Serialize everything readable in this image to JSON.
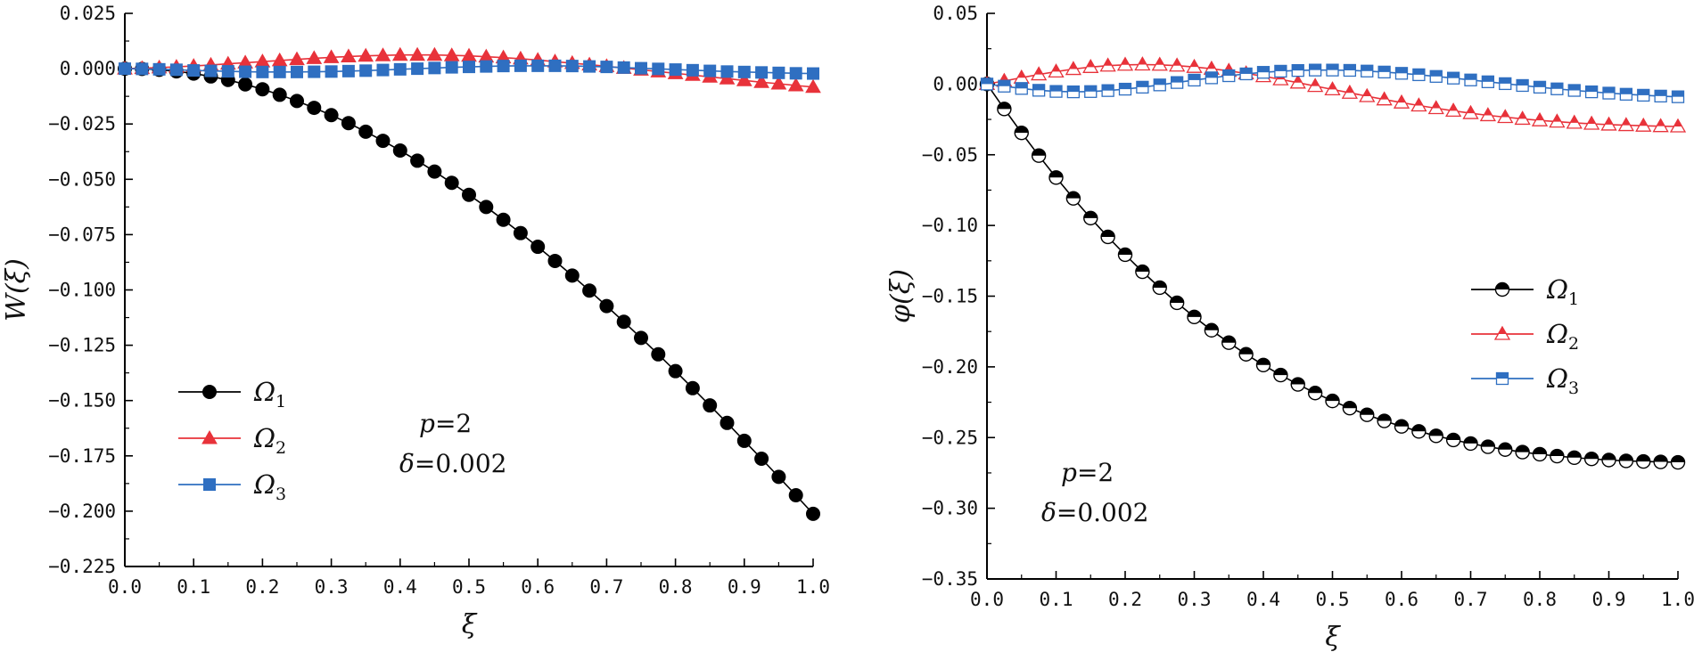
{
  "colors": {
    "black": "#000000",
    "red": "#e8323a",
    "blue": "#2f6fc1"
  },
  "chart_data": [
    {
      "type": "line",
      "ylabel": "W(ξ)",
      "xlabel": "ξ",
      "xlim": [
        0,
        1
      ],
      "ylim": [
        -0.225,
        0.025
      ],
      "xticks": [
        0.0,
        0.1,
        0.2,
        0.3,
        0.4,
        0.5,
        0.6,
        0.7,
        0.8,
        0.9,
        1.0
      ],
      "xtick_labels": [
        "0.0",
        "0.1",
        "0.2",
        "0.3",
        "0.4",
        "0.5",
        "0.6",
        "0.7",
        "0.8",
        "0.9",
        "1.0"
      ],
      "yticks": [
        0.025,
        0,
        -0.025,
        -0.05,
        -0.075,
        -0.1,
        -0.125,
        -0.15,
        -0.175,
        -0.2,
        -0.225
      ],
      "ytick_labels": [
        "0.025",
        "0.000",
        "−0.025",
        "−0.050",
        "−0.075",
        "−0.100",
        "−0.125",
        "−0.150",
        "−0.175",
        "−0.200",
        "−0.225"
      ],
      "legend_position": "lower-left",
      "annotation": {
        "p_label": "p",
        "p_value": "=2",
        "delta_label": "δ",
        "delta_value": "=0.002"
      },
      "x": [
        0,
        0.025,
        0.05,
        0.075,
        0.1,
        0.125,
        0.15,
        0.175,
        0.2,
        0.225,
        0.25,
        0.275,
        0.3,
        0.325,
        0.35,
        0.375,
        0.4,
        0.425,
        0.45,
        0.475,
        0.5,
        0.525,
        0.55,
        0.575,
        0.6,
        0.625,
        0.65,
        0.675,
        0.7,
        0.725,
        0.75,
        0.775,
        0.8,
        0.825,
        0.85,
        0.875,
        0.9,
        0.925,
        0.95,
        0.975,
        1.0
      ],
      "series": [
        {
          "name": "Ω",
          "sub": "1",
          "color": "black",
          "marker": "circle-filled",
          "values": [
            0,
            -0.0001,
            -0.0005,
            -0.0012,
            -0.0022,
            -0.0035,
            -0.0051,
            -0.0071,
            -0.0093,
            -0.0118,
            -0.0146,
            -0.0177,
            -0.021,
            -0.0246,
            -0.0285,
            -0.0326,
            -0.037,
            -0.0416,
            -0.0465,
            -0.0516,
            -0.057,
            -0.0625,
            -0.0683,
            -0.0743,
            -0.0805,
            -0.0869,
            -0.0935,
            -0.1003,
            -0.1073,
            -0.1144,
            -0.1217,
            -0.1291,
            -0.1367,
            -0.1444,
            -0.1522,
            -0.1601,
            -0.1682,
            -0.1763,
            -0.1845,
            -0.1928,
            -0.2012
          ]
        },
        {
          "name": "Ω",
          "sub": "2",
          "color": "red",
          "marker": "triangle-filled",
          "values": [
            0,
            0.0002,
            0.0005,
            0.0008,
            0.0012,
            0.0017,
            0.0022,
            0.0027,
            0.0032,
            0.0037,
            0.0042,
            0.0047,
            0.0051,
            0.0055,
            0.0058,
            0.006,
            0.0062,
            0.0062,
            0.0062,
            0.006,
            0.0058,
            0.0054,
            0.005,
            0.0045,
            0.0039,
            0.0032,
            0.0025,
            0.0018,
            0.0011,
            0.0003,
            -0.0005,
            -0.0013,
            -0.0021,
            -0.0029,
            -0.0037,
            -0.0045,
            -0.0053,
            -0.0061,
            -0.0068,
            -0.0076,
            -0.0083
          ]
        },
        {
          "name": "Ω",
          "sub": "3",
          "color": "blue",
          "marker": "square-filled",
          "values": [
            0,
            -0.0001,
            -0.0003,
            -0.0005,
            -0.0008,
            -0.001,
            -0.0012,
            -0.0014,
            -0.0015,
            -0.0015,
            -0.0015,
            -0.0014,
            -0.0013,
            -0.0011,
            -0.0009,
            -0.0006,
            -0.0003,
            0,
            0.0003,
            0.0006,
            0.0008,
            0.001,
            0.0012,
            0.0013,
            0.0013,
            0.0013,
            0.0012,
            0.001,
            0.0008,
            0.0005,
            0.0002,
            -0.0001,
            -0.0004,
            -0.0007,
            -0.001,
            -0.0013,
            -0.0015,
            -0.0017,
            -0.0019,
            -0.0021,
            -0.0022
          ]
        }
      ]
    },
    {
      "type": "line",
      "ylabel": "φ(ξ)",
      "xlabel": "ξ",
      "xlim": [
        0,
        1
      ],
      "ylim": [
        -0.35,
        0.05
      ],
      "xticks": [
        0.0,
        0.1,
        0.2,
        0.3,
        0.4,
        0.5,
        0.6,
        0.7,
        0.8,
        0.9,
        1.0
      ],
      "xtick_labels": [
        "0.0",
        "0.1",
        "0.2",
        "0.3",
        "0.4",
        "0.5",
        "0.6",
        "0.7",
        "0.8",
        "0.9",
        "1.0"
      ],
      "yticks": [
        0.05,
        0,
        -0.05,
        -0.1,
        -0.15,
        -0.2,
        -0.25,
        -0.3,
        -0.35
      ],
      "ytick_labels": [
        "0.05",
        "0.00",
        "−0.05",
        "−0.10",
        "−0.15",
        "−0.20",
        "−0.25",
        "−0.30",
        "−0.35"
      ],
      "legend_position": "middle-right",
      "annotation": {
        "p_label": "p",
        "p_value": "=2",
        "delta_label": "δ",
        "delta_value": "=0.002"
      },
      "x": [
        0,
        0.025,
        0.05,
        0.075,
        0.1,
        0.125,
        0.15,
        0.175,
        0.2,
        0.225,
        0.25,
        0.275,
        0.3,
        0.325,
        0.35,
        0.375,
        0.4,
        0.425,
        0.45,
        0.475,
        0.5,
        0.525,
        0.55,
        0.575,
        0.6,
        0.625,
        0.65,
        0.675,
        0.7,
        0.725,
        0.75,
        0.775,
        0.8,
        0.825,
        0.85,
        0.875,
        0.9,
        0.925,
        0.95,
        0.975,
        1.0
      ],
      "series": [
        {
          "name": "Ω",
          "sub": "1",
          "color": "black",
          "marker": "circle-half",
          "values": [
            0,
            -0.0176,
            -0.0345,
            -0.0506,
            -0.0661,
            -0.0808,
            -0.0948,
            -0.1081,
            -0.1207,
            -0.1327,
            -0.144,
            -0.1547,
            -0.1647,
            -0.1741,
            -0.1829,
            -0.1911,
            -0.1987,
            -0.2058,
            -0.2124,
            -0.2185,
            -0.2241,
            -0.2292,
            -0.2339,
            -0.2382,
            -0.2421,
            -0.2456,
            -0.2488,
            -0.2517,
            -0.2542,
            -0.2565,
            -0.2585,
            -0.2603,
            -0.2618,
            -0.2631,
            -0.2642,
            -0.2651,
            -0.2659,
            -0.2665,
            -0.2669,
            -0.2672,
            -0.2675
          ]
        },
        {
          "name": "Ω",
          "sub": "2",
          "color": "red",
          "marker": "triangle-half",
          "values": [
            0,
            0.0022,
            0.0045,
            0.0068,
            0.0088,
            0.0106,
            0.012,
            0.013,
            0.0136,
            0.0138,
            0.0136,
            0.013,
            0.0121,
            0.0108,
            0.0093,
            0.0075,
            0.0055,
            0.0033,
            0.001,
            -0.0014,
            -0.0038,
            -0.0062,
            -0.0086,
            -0.0109,
            -0.0131,
            -0.0152,
            -0.0171,
            -0.0189,
            -0.0206,
            -0.0221,
            -0.0234,
            -0.0246,
            -0.0257,
            -0.0266,
            -0.0274,
            -0.0281,
            -0.0287,
            -0.0291,
            -0.0295,
            -0.0298,
            -0.03
          ]
        },
        {
          "name": "Ω",
          "sub": "3",
          "color": "blue",
          "marker": "square-half",
          "values": [
            0,
            -0.0015,
            -0.0031,
            -0.0044,
            -0.0052,
            -0.0055,
            -0.0053,
            -0.0046,
            -0.0036,
            -0.0022,
            -0.0006,
            0.0011,
            0.0028,
            0.0044,
            0.0059,
            0.0072,
            0.0083,
            0.0091,
            0.0096,
            0.0099,
            0.0099,
            0.0097,
            0.0092,
            0.0085,
            0.0076,
            0.0066,
            0.0054,
            0.0042,
            0.0029,
            0.0016,
            0.0003,
            -0.001,
            -0.0022,
            -0.0034,
            -0.0045,
            -0.0055,
            -0.0064,
            -0.0072,
            -0.0079,
            -0.0085,
            -0.009
          ]
        }
      ]
    }
  ]
}
